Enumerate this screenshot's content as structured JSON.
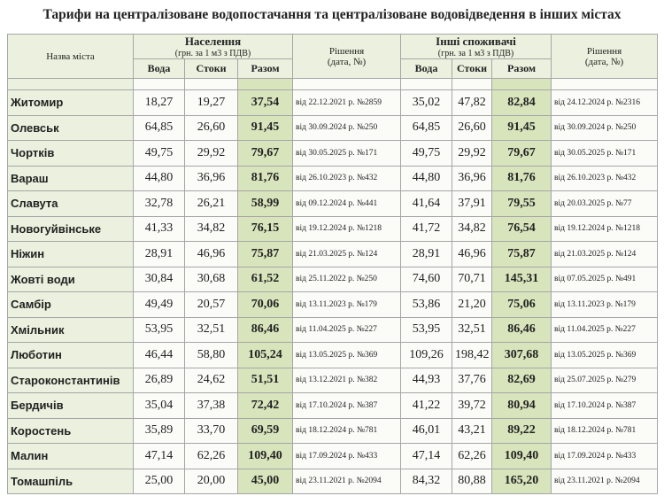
{
  "title": "Тарифи на централізоване водопостачання та централізоване водовідведення в інших містах",
  "table": {
    "header": {
      "city": "Назва міста",
      "population": {
        "title": "Населення",
        "unit": "(грн. за 1 м3 з ПДВ)",
        "water": "Вода",
        "sewage": "Стоки",
        "total": "Разом"
      },
      "population_decision": {
        "title": "Рішення",
        "note": "(дата, №)"
      },
      "others": {
        "title": "Інші споживачі",
        "unit": "(грн. за 1 м3 з ПДВ)",
        "water": "Вода",
        "sewage": "Стоки",
        "total": "Разом"
      },
      "others_decision": {
        "title": "Рішення",
        "note": "(дата, №)"
      }
    },
    "rows": [
      [
        "Житомир",
        "18,27",
        "19,27",
        "37,54",
        "від 22.12.2021 р. №2859",
        "35,02",
        "47,82",
        "82,84",
        "від 24.12.2024 р. №2316"
      ],
      [
        "Олевськ",
        "64,85",
        "26,60",
        "91,45",
        "від 30.09.2024 р. №250",
        "64,85",
        "26,60",
        "91,45",
        "від 30.09.2024 р. №250"
      ],
      [
        "Чортків",
        "49,75",
        "29,92",
        "79,67",
        "від 30.05.2025 р. №171",
        "49,75",
        "29,92",
        "79,67",
        "від 30.05.2025 р. №171"
      ],
      [
        "Вараш",
        "44,80",
        "36,96",
        "81,76",
        "від 26.10.2023 р. №432",
        "44,80",
        "36,96",
        "81,76",
        "від 26.10.2023 р. №432"
      ],
      [
        "Славута",
        "32,78",
        "26,21",
        "58,99",
        "від 09.12.2024 р. №441",
        "41,64",
        "37,91",
        "79,55",
        "від 20.03.2025 р. №77"
      ],
      [
        "Новогуйвінське",
        "41,33",
        "34,82",
        "76,15",
        "від 19.12.2024 р. №1218",
        "41,72",
        "34,82",
        "76,54",
        "від 19.12.2024 р. №1218"
      ],
      [
        "Ніжин",
        "28,91",
        "46,96",
        "75,87",
        "від 21.03.2025 р. №124",
        "28,91",
        "46,96",
        "75,87",
        "від 21.03.2025 р. №124"
      ],
      [
        "Жовті води",
        "30,84",
        "30,68",
        "61,52",
        "від 25.11.2022 р. №250",
        "74,60",
        "70,71",
        "145,31",
        "від 07.05.2025 р. №491"
      ],
      [
        "Самбір",
        "49,49",
        "20,57",
        "70,06",
        "від 13.11.2023 р. №179",
        "53,86",
        "21,20",
        "75,06",
        "від 13.11.2023 р. №179"
      ],
      [
        "Хмільник",
        "53,95",
        "32,51",
        "86,46",
        "від 11.04.2025 р. №227",
        "53,95",
        "32,51",
        "86,46",
        "від 11.04.2025 р. №227"
      ],
      [
        "Люботин",
        "46,44",
        "58,80",
        "105,24",
        "від 13.05.2025 р. №369",
        "109,26",
        "198,42",
        "307,68",
        "від 13.05.2025 р. №369"
      ],
      [
        "Староконстантинів",
        "26,89",
        "24,62",
        "51,51",
        "від 13.12.2021 р. №382",
        "44,93",
        "37,76",
        "82,69",
        "від 25.07.2025 р. №279"
      ],
      [
        "Бердичів",
        "35,04",
        "37,38",
        "72,42",
        "від 17.10.2024 р. №387",
        "41,22",
        "39,72",
        "80,94",
        "від 17.10.2024 р. №387"
      ],
      [
        "Коростень",
        "35,89",
        "33,70",
        "69,59",
        "від 18.12.2024 р. №781",
        "46,01",
        "43,21",
        "89,22",
        "від 18.12.2024 р. №781"
      ],
      [
        "Малин",
        "47,14",
        "62,26",
        "109,40",
        "від 17.09.2024 р. №433",
        "47,14",
        "62,26",
        "109,40",
        "від 17.09.2024 р. №433"
      ],
      [
        "Томашпіль",
        "25,00",
        "20,00",
        "45,00",
        "від 23.11.2021 р. №2094",
        "84,32",
        "80,88",
        "165,20",
        "від 23.11.2021 р. №2094"
      ]
    ]
  }
}
